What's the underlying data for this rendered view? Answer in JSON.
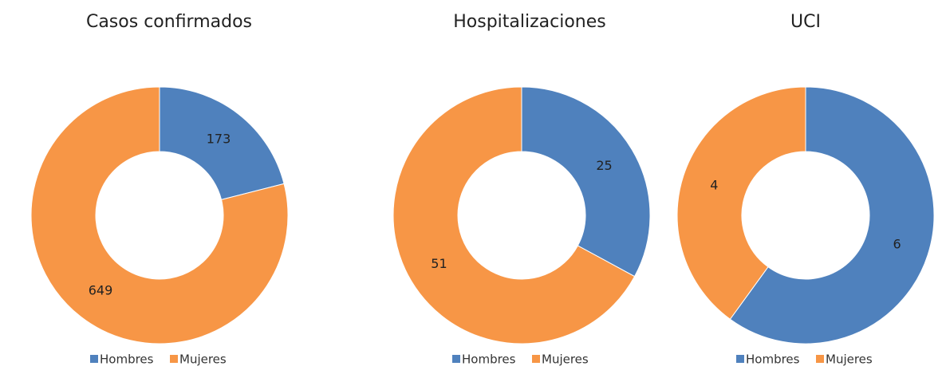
{
  "chart_data": [
    {
      "type": "pie",
      "title": "Casos confirmados",
      "categories": [
        "Hombres",
        "Mujeres"
      ],
      "values": [
        173,
        649
      ],
      "colors": [
        "#4f81bd",
        "#f79646"
      ],
      "legend": "bottom"
    },
    {
      "type": "pie",
      "title": "Hospitalizaciones",
      "categories": [
        "Hombres",
        "Mujeres"
      ],
      "values": [
        25,
        51
      ],
      "colors": [
        "#4f81bd",
        "#f79646"
      ],
      "legend": "bottom"
    },
    {
      "type": "pie",
      "title": "UCI",
      "categories": [
        "Hombres",
        "Mujeres"
      ],
      "values": [
        6,
        4
      ],
      "colors": [
        "#4f81bd",
        "#f79646"
      ],
      "legend": "bottom"
    }
  ]
}
